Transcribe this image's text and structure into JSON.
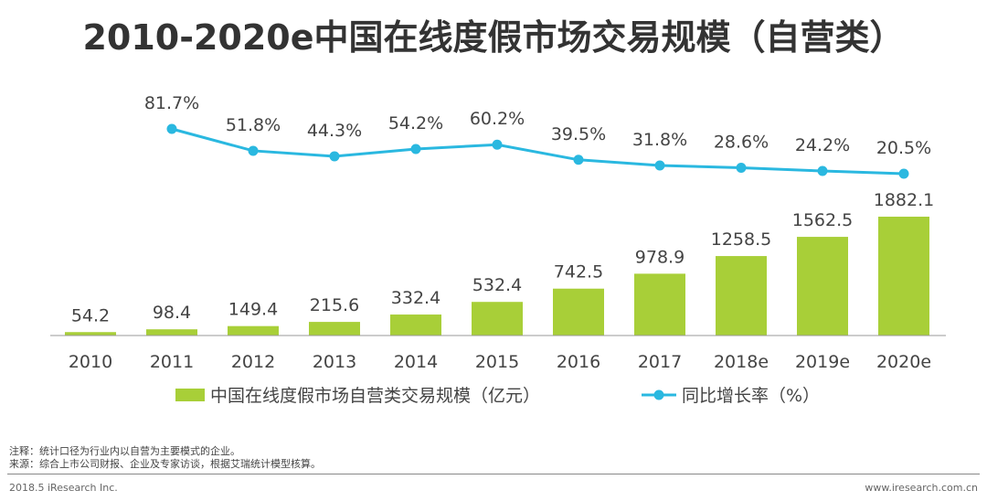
{
  "title": "2010-2020e中国在线度假市场交易规模（自营类）",
  "chart_data": {
    "type": "bar+line",
    "categories": [
      "2010",
      "2011",
      "2012",
      "2013",
      "2014",
      "2015",
      "2016",
      "2017",
      "2018e",
      "2019e",
      "2020e"
    ],
    "series": [
      {
        "name": "中国在线度假市场自营类交易规模（亿元）",
        "type": "bar",
        "color": "#a8cf38",
        "values": [
          54.2,
          98.4,
          149.4,
          215.6,
          332.4,
          532.4,
          742.5,
          978.9,
          1258.5,
          1562.5,
          1882.1
        ],
        "labels": [
          "54.2",
          "98.4",
          "149.4",
          "215.6",
          "332.4",
          "532.4",
          "742.5",
          "978.9",
          "1258.5",
          "1562.5",
          "1882.1"
        ]
      },
      {
        "name": "同比增长率（%）",
        "type": "line",
        "color": "#2ab8e0",
        "values": [
          null,
          81.7,
          51.8,
          44.3,
          54.2,
          60.2,
          39.5,
          31.8,
          28.6,
          24.2,
          20.5
        ],
        "labels": [
          "",
          "81.7%",
          "51.8%",
          "44.3%",
          "54.2%",
          "60.2%",
          "39.5%",
          "31.8%",
          "28.6%",
          "24.2%",
          "20.5%"
        ]
      }
    ],
    "bar_ylim": [
      0,
      1882.1
    ],
    "line_ylim": [
      20.5,
      81.7
    ],
    "legend_position": "bottom"
  },
  "notes": {
    "note": "注释：统计口径为行业内以自营为主要模式的企业。",
    "source": "来源：综合上市公司财报、企业及专家访谈，根据艾瑞统计模型核算。"
  },
  "footer": {
    "left": "2018.5 iResearch Inc.",
    "right": "www.iresearch.com.cn"
  }
}
